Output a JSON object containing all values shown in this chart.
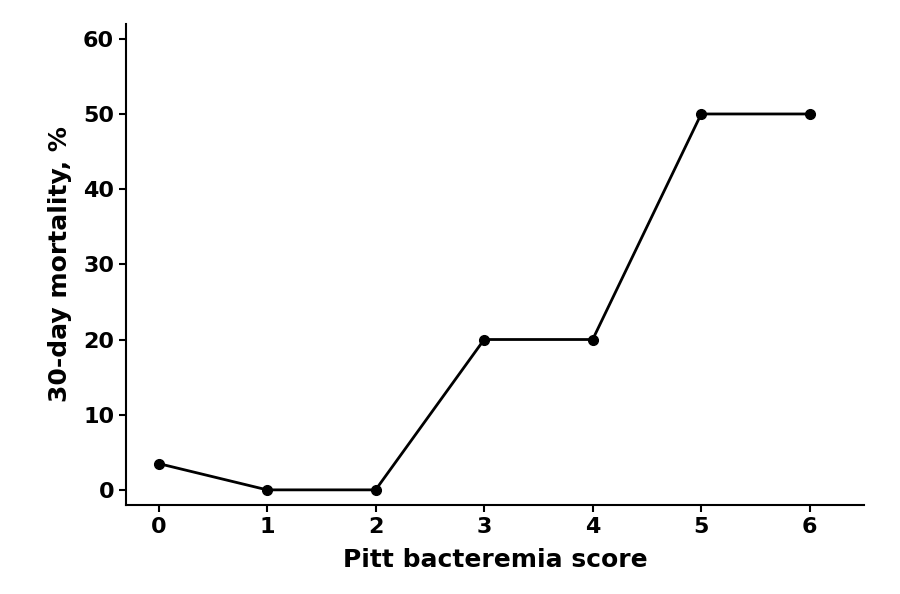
{
  "x": [
    0,
    1,
    2,
    3,
    4,
    5,
    6
  ],
  "y": [
    3.5,
    0,
    0,
    20,
    20,
    50,
    50
  ],
  "xlabel": "Pitt bacteremia score",
  "ylabel": "30-day mortality, %",
  "xlim": [
    -0.3,
    6.5
  ],
  "ylim": [
    -2,
    62
  ],
  "xticks": [
    0,
    1,
    2,
    3,
    4,
    5,
    6
  ],
  "yticks": [
    0,
    10,
    20,
    30,
    40,
    50,
    60
  ],
  "line_color": "#000000",
  "marker": "o",
  "marker_size": 7,
  "line_width": 2.0,
  "background_color": "#ffffff",
  "xlabel_fontsize": 18,
  "ylabel_fontsize": 18,
  "tick_fontsize": 16,
  "font_weight": "bold"
}
